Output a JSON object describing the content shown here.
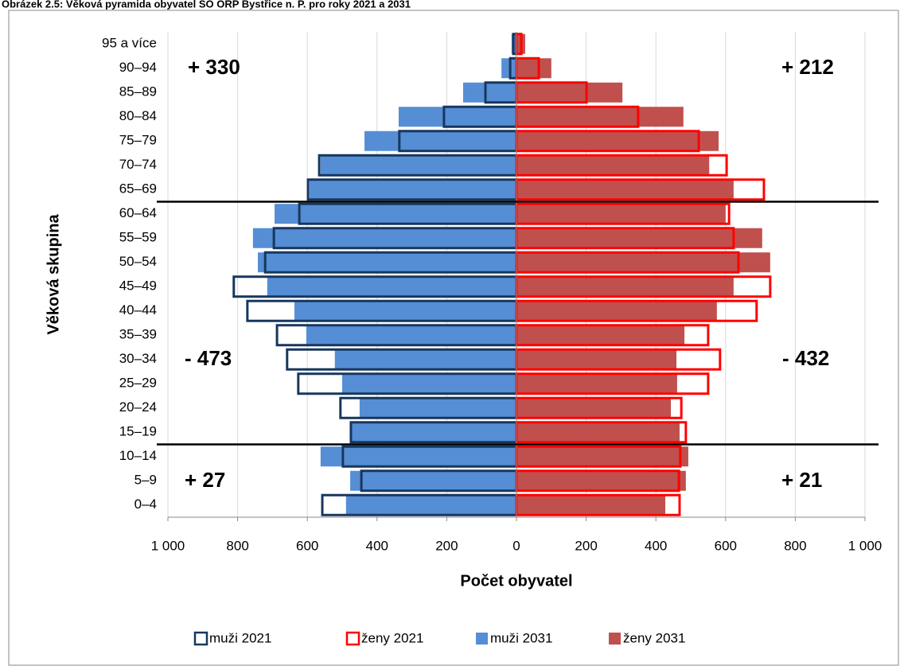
{
  "chart_data": {
    "type": "pyramid",
    "title": "Obrázek 2.5: Věková pyramida obyvatel SO ORP Bystřice n. P. pro roky 2021 a 2031",
    "xlabel": "Počet obyvatel",
    "ylabel": "Věková skupina",
    "categories": [
      "0–4",
      "5–9",
      "10–14",
      "15–19",
      "20–24",
      "25–29",
      "30–34",
      "35–39",
      "40–44",
      "45–49",
      "50–54",
      "55–59",
      "60–64",
      "65–69",
      "70–74",
      "75–79",
      "80–84",
      "85–89",
      "90–94",
      "95 a více"
    ],
    "series": [
      {
        "name": "muži 2031",
        "color": "#558ed5",
        "style": "fill",
        "values": [
          -489,
          -477,
          -562,
          -473,
          -450,
          -500,
          -521,
          -603,
          -637,
          -715,
          -742,
          -756,
          -694,
          -594,
          -562,
          -436,
          -338,
          -153,
          -43,
          -14
        ]
      },
      {
        "name": "ženy 2031",
        "color": "#c0504d",
        "style": "fill",
        "values": [
          427,
          486,
          493,
          468,
          443,
          461,
          459,
          482,
          575,
          623,
          728,
          705,
          600,
          623,
          553,
          580,
          479,
          304,
          100,
          25
        ]
      },
      {
        "name": "muži 2021",
        "color": "#17375e",
        "style": "outline",
        "values": [
          -557,
          -445,
          -498,
          -475,
          -505,
          -626,
          -658,
          -687,
          -772,
          -811,
          -721,
          -696,
          -623,
          -598,
          -566,
          -336,
          -208,
          -89,
          -18,
          -9
        ]
      },
      {
        "name": "ženy 2021",
        "color": "#ff0000",
        "style": "outline",
        "values": [
          468,
          466,
          470,
          486,
          473,
          550,
          584,
          550,
          689,
          728,
          637,
          623,
          610,
          710,
          603,
          523,
          349,
          201,
          64,
          14
        ]
      }
    ],
    "legend_order": [
      2,
      3,
      0,
      1
    ],
    "xlim": [
      -1000,
      1000
    ],
    "xticks": [
      {
        "value": -1000,
        "label": "1 000"
      },
      {
        "value": -800,
        "label": "800"
      },
      {
        "value": -600,
        "label": "600"
      },
      {
        "value": -400,
        "label": "400"
      },
      {
        "value": -200,
        "label": "200"
      },
      0,
      200,
      400,
      600,
      800,
      {
        "value": 1000,
        "label": "1 000"
      }
    ],
    "grid": true,
    "annotations": [
      {
        "text": "+ 330",
        "color": "#138a13"
      },
      {
        "text": "+ 212",
        "color": "#138a13"
      },
      {
        "text": "- 473",
        "color": "#c00000"
      },
      {
        "text": "- 432",
        "color": "#c00000"
      },
      {
        "text": "+ 27",
        "color": "#138a13"
      },
      {
        "text": "+ 21",
        "color": "#138a13"
      }
    ]
  }
}
